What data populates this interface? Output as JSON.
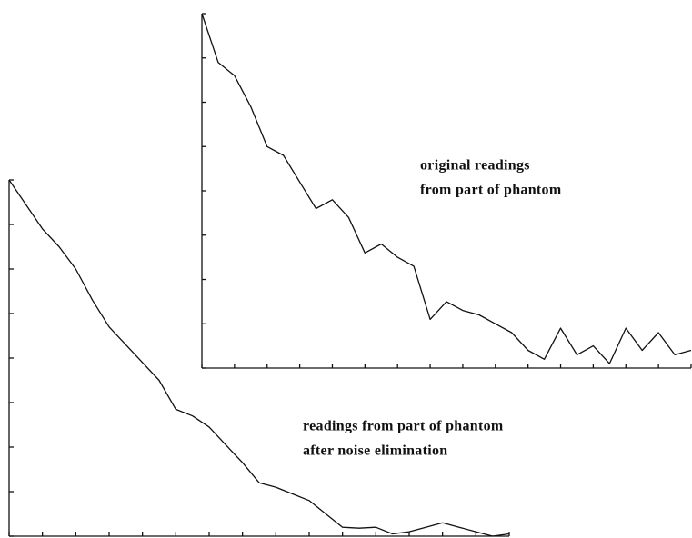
{
  "chart_data": [
    {
      "type": "line",
      "annotation": [
        "original readings",
        "from part of phantom"
      ],
      "x": [
        0,
        0.5,
        1,
        1.5,
        2,
        2.5,
        3,
        3.5,
        4,
        4.5,
        5,
        5.5,
        6,
        6.5,
        7,
        7.5,
        8,
        8.5,
        9,
        9.5,
        10,
        10.5,
        11,
        11.5,
        12,
        12.5,
        13,
        13.5,
        14,
        14.5,
        15
      ],
      "series": [
        {
          "color": "#111",
          "values": [
            8.0,
            6.9,
            6.6,
            5.9,
            5.0,
            4.8,
            4.2,
            3.6,
            3.8,
            3.4,
            2.6,
            2.8,
            2.5,
            2.3,
            1.1,
            1.5,
            1.3,
            1.2,
            1.0,
            0.8,
            0.4,
            0.2,
            0.9,
            0.3,
            0.5,
            0.1,
            0.9,
            0.4,
            0.8,
            0.3,
            0.4
          ]
        }
      ],
      "xlim": [
        0,
        15
      ],
      "ylim": [
        0,
        8
      ],
      "xticks": [
        0,
        1,
        2,
        3,
        4,
        5,
        6,
        7,
        8,
        9,
        10,
        11,
        12,
        13,
        14,
        15
      ],
      "yticks": [
        0,
        1,
        2,
        3,
        4,
        5,
        6,
        7,
        8
      ]
    },
    {
      "type": "line",
      "annotation": [
        "readings from part of phantom",
        "after noise elimination"
      ],
      "x": [
        0,
        0.5,
        1,
        1.5,
        2,
        2.5,
        3,
        3.5,
        4,
        4.5,
        5,
        5.5,
        6,
        6.5,
        7,
        7.5,
        8,
        8.5,
        9,
        9.5,
        10,
        10.5,
        11,
        11.5,
        12,
        12.5,
        13,
        13.5,
        14,
        14.5,
        15
      ],
      "series": [
        {
          "color": "#111",
          "values": [
            8.0,
            7.45,
            6.9,
            6.5,
            6.0,
            5.3,
            4.7,
            4.3,
            3.9,
            3.5,
            2.85,
            2.7,
            2.45,
            2.05,
            1.65,
            1.2,
            1.1,
            0.95,
            0.8,
            0.5,
            0.2,
            0.18,
            0.2,
            0.05,
            0.1,
            0.2,
            0.3,
            0.2,
            0.1,
            0,
            0.05
          ]
        }
      ],
      "xlim": [
        0,
        15
      ],
      "ylim": [
        0,
        8
      ],
      "xticks": [
        0,
        1,
        2,
        3,
        4,
        5,
        6,
        7,
        8,
        9,
        10,
        11,
        12,
        13,
        14,
        15
      ],
      "yticks": [
        0,
        1,
        2,
        3,
        4,
        5,
        6,
        7,
        8
      ]
    }
  ]
}
